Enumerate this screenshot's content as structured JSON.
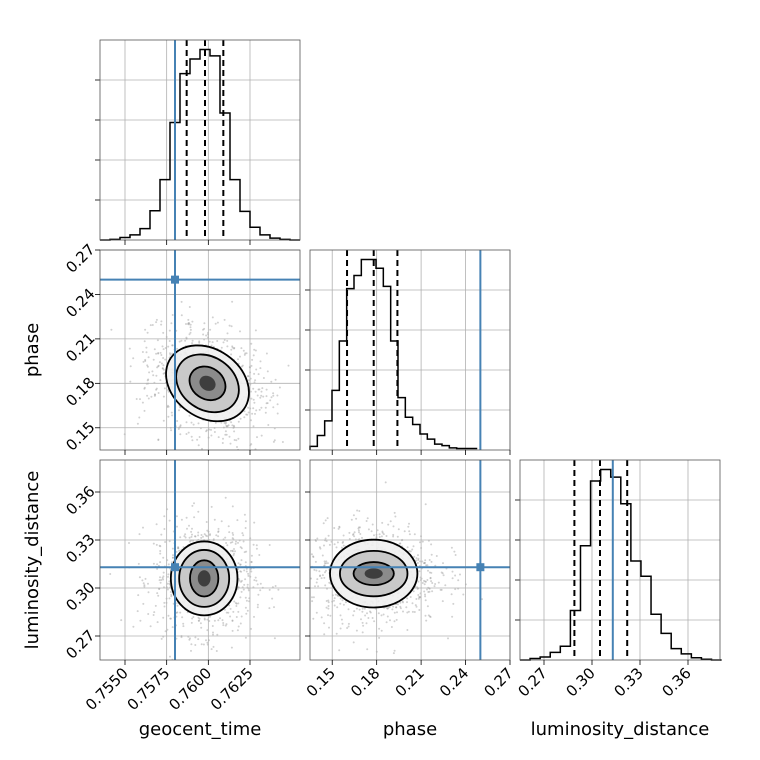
{
  "chart_data": {
    "type": "corner",
    "parameters": [
      "geocent_time",
      "phase",
      "luminosity_distance"
    ],
    "truths": {
      "geocent_time": 0.758,
      "phase": 0.25,
      "luminosity_distance": 0.313
    },
    "ranges": {
      "geocent_time": [
        0.7535,
        0.7655
      ],
      "phase": [
        0.135,
        0.27
      ],
      "luminosity_distance": [
        0.255,
        0.38
      ]
    },
    "ticks": {
      "geocent_time": [
        "0.7550",
        "0.7575",
        "0.7600",
        "0.7625"
      ],
      "phase": [
        "0.15",
        "0.18",
        "0.21",
        "0.24",
        "0.27"
      ],
      "luminosity_distance": [
        "0.27",
        "0.30",
        "0.33",
        "0.36"
      ]
    },
    "quantiles": {
      "geocent_time": [
        0.7587,
        0.7598,
        0.7609
      ],
      "phase": [
        0.16,
        0.178,
        0.194
      ],
      "luminosity_distance": [
        0.289,
        0.305,
        0.322
      ]
    },
    "histograms": {
      "geocent_time": {
        "edges": [
          0.7535,
          0.7541,
          0.7547,
          0.7553,
          0.7559,
          0.7565,
          0.7571,
          0.7577,
          0.7583,
          0.7589,
          0.7595,
          0.7601,
          0.7607,
          0.7613,
          0.7619,
          0.7625,
          0.7631,
          0.7637,
          0.7643,
          0.7649,
          0.7655
        ],
        "counts": [
          0,
          1,
          4,
          8,
          18,
          46,
          95,
          185,
          262,
          285,
          300,
          290,
          200,
          95,
          45,
          20,
          8,
          3,
          1,
          0
        ]
      },
      "phase": {
        "edges": [
          0.135,
          0.13995,
          0.1449,
          0.14985,
          0.1548,
          0.15975,
          0.1647,
          0.16965,
          0.1746,
          0.17955,
          0.1845,
          0.18945,
          0.1944,
          0.19935,
          0.2043,
          0.20925,
          0.2142,
          0.21915,
          0.2241,
          0.22905,
          0.234,
          0.2479
        ],
        "counts": [
          5,
          20,
          40,
          82,
          150,
          222,
          240,
          262,
          262,
          250,
          225,
          150,
          72,
          45,
          35,
          22,
          15,
          8,
          6,
          3,
          2
        ]
      },
      "luminosity_distance": {
        "edges": [
          0.255,
          0.2613,
          0.2676,
          0.2739,
          0.2802,
          0.2865,
          0.2928,
          0.2991,
          0.3054,
          0.3117,
          0.318,
          0.3243,
          0.3306,
          0.3369,
          0.3432,
          0.3495,
          0.3558,
          0.3621,
          0.3684,
          0.3747,
          0.381
        ],
        "counts": [
          0,
          2,
          4,
          10,
          18,
          65,
          150,
          235,
          250,
          240,
          205,
          130,
          110,
          60,
          35,
          15,
          8,
          3,
          1,
          0
        ]
      }
    },
    "contours_2d": {
      "phase_vs_geocent_time": {
        "center": [
          0.75995,
          0.18
        ],
        "radii": [
          [
            0.00094,
            0.0128
          ],
          [
            0.00158,
            0.0226
          ],
          [
            0.00205,
            0.0301
          ]
        ],
        "angle_deg": 55
      },
      "luminosity_distance_vs_geocent_time": {
        "center": [
          0.75975,
          0.306
        ],
        "radii": [
          [
            0.00085,
            0.0113
          ],
          [
            0.0015,
            0.0178
          ],
          [
            0.002,
            0.0231
          ]
        ],
        "angle_deg": 0
      },
      "luminosity_distance_vs_phase": {
        "center": [
          0.178,
          0.309
        ],
        "radii": [
          [
            0.0136,
            0.0072
          ],
          [
            0.0228,
            0.0142
          ],
          [
            0.0295,
            0.0212
          ]
        ],
        "angle_deg": 0
      }
    }
  }
}
